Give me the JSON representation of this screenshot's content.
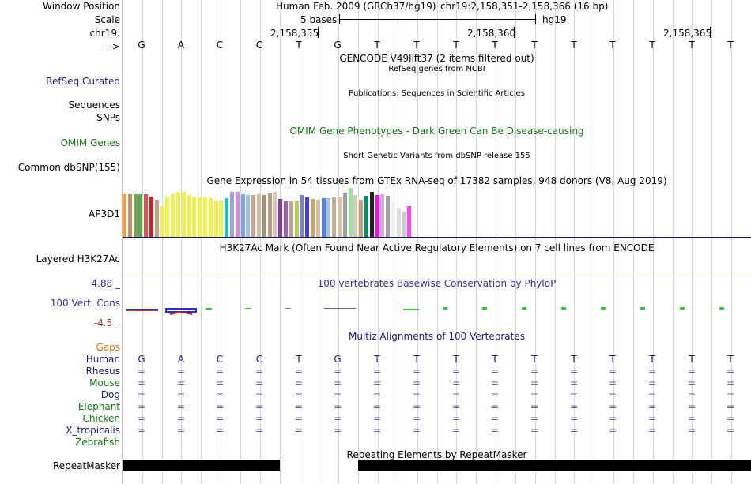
{
  "header": {
    "window_position_label": "Window Position",
    "assembly": "Human Feb. 2009 (GRCh37/hg19)",
    "position": "chr19:2,158,351-2,158,366 (16 bp)",
    "scale_label": "Scale",
    "scale_text": "5 bases",
    "scale_db": "hg19",
    "chrom_label": "chr19:",
    "coords": [
      "2,158,355",
      "2,158,360",
      "2,158,365"
    ],
    "strand_label": "--->"
  },
  "sequence": [
    "G",
    "A",
    "C",
    "C",
    "T",
    "G",
    "T",
    "T",
    "T",
    "T",
    "T",
    "T",
    "T",
    "T",
    "T",
    "T"
  ],
  "tracks": {
    "gencode_title": "GENCODE V49lift37 (2 items filtered out)",
    "refseq_label": "RefSeq Curated",
    "refseq_title": "RefSeq genes from NCBI",
    "sequences_label": "Sequences",
    "pubs_title": "Publications: Sequences in Scientific Articles",
    "snps_label": "SNPs",
    "omim_title": "OMIM Gene Phenotypes - Dark Green Can Be Disease-causing",
    "omim_label": "OMIM Genes",
    "dbsnp_title": "Short Genetic Variants from dbSNP release 155",
    "dbsnp_label": "Common dbSNP(155)",
    "gtex_title": "Gene Expression in 54 tissues from GTEx RNA-seq of 17382 samples, 948 donors (V8, Aug 2019)",
    "gtex_gene": "AP3D1",
    "h3k27ac_label": "Layered H3K27Ac",
    "h3k27ac_title": "H3K27Ac Mark (Often Found Near Active Regulatory Elements) on 7 cell lines from ENCODE",
    "cons_title": "100 vertebrates Basewise Conservation by PhyloP",
    "cons_label": "100 Vert. Cons",
    "cons_max": "4.88 _",
    "cons_min": "-4.5 _",
    "multiz_title": "Multiz Alignments of 100 Vertebrates",
    "gaps_label": "Gaps",
    "repeat_title": "Repeating Elements by RepeatMasker",
    "repeat_label": "RepeatMasker"
  },
  "species": [
    {
      "name": "Human",
      "color": "#1a1a7a"
    },
    {
      "name": "Rhesus",
      "color": "#1a1a7a"
    },
    {
      "name": "Mouse",
      "color": "#117711"
    },
    {
      "name": "Dog",
      "color": "#1a1a7a"
    },
    {
      "name": "Elephant",
      "color": "#117711"
    },
    {
      "name": "Chicken",
      "color": "#117711"
    },
    {
      "name": "X_tropicalis",
      "color": "#1a1a7a"
    },
    {
      "name": "Zebrafish",
      "color": "#117711"
    }
  ],
  "align_symbol": "=",
  "gtex_values": [
    55,
    55,
    55,
    55,
    55,
    52,
    48,
    40,
    52,
    55,
    58,
    58,
    54,
    51,
    51,
    51,
    50,
    47,
    47,
    50,
    58,
    58,
    55,
    54,
    54,
    55,
    54,
    56,
    58,
    49,
    46,
    46,
    47,
    54,
    51,
    49,
    48,
    50,
    50,
    51,
    52,
    57,
    63,
    54,
    48,
    53,
    58,
    54,
    55,
    53,
    47,
    37,
    32,
    40
  ],
  "gtex_colors": [
    "#f0a040",
    "#c09070",
    "#80a050",
    "#50b050",
    "#e05050",
    "#d02020",
    "#c0a090",
    "#f0f050",
    "#f0f050",
    "#f0f050",
    "#f0f050",
    "#f0f050",
    "#f0f050",
    "#f0f050",
    "#f0f050",
    "#f0f050",
    "#f0f050",
    "#f0f050",
    "#f0f050",
    "#20c0c0",
    "#a0a0e0",
    "#d090e0",
    "#80a0e0",
    "#a0c0e0",
    "#d0a090",
    "#d0c0a0",
    "#a09080",
    "#c0a080",
    "#e0c0b0",
    "#8040a0",
    "#a060b0",
    "#c0a090",
    "#b0d050",
    "#8080c0",
    "#4040e0",
    "#d0a060",
    "#d0c090",
    "#5080f0",
    "#a0c0f0",
    "#c0b090",
    "#e0c0a0",
    "#a0a0a0",
    "#a0e0a0",
    "#d0d0b0",
    "#c0a080",
    "#009060",
    "#202020",
    "#ff00ff",
    "#e0a0e0",
    "#a0a0a0",
    "#f0f0f0",
    "#e0e0e0",
    "#cccccc",
    "#ff40ff"
  ]
}
